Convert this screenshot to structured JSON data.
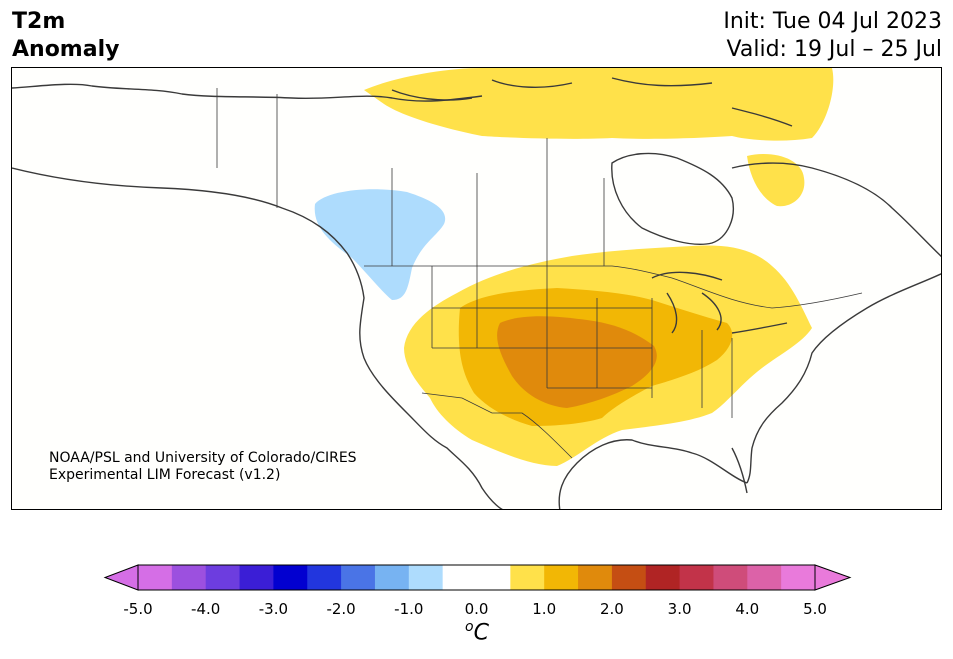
{
  "title": {
    "variable_line1": "T2m",
    "variable_line2": "Anomaly",
    "init": "Init: Tue 04 Jul 2023",
    "valid": "Valid: 19 Jul – 25 Jul"
  },
  "credit": {
    "line1": "NOAA/PSL and University of Colorado/CIRES",
    "line2": "Experimental LIM Forecast (v1.2)"
  },
  "colorbar": {
    "unit_base": "C",
    "unit_sup": "o",
    "tick_labels": [
      "-5.0",
      "-4.0",
      "-3.0",
      "-2.0",
      "-1.0",
      "0.0",
      "1.0",
      "2.0",
      "3.0",
      "4.0",
      "5.0"
    ],
    "under_color": "#d56ee6",
    "over_color": "#e97adb",
    "bins": [
      "#d56ee6",
      "#9c50df",
      "#6d3ddf",
      "#3b1ed6",
      "#0200d0",
      "#2236de",
      "#4a74e6",
      "#77b3f2",
      "#aedcfd",
      "#ffffff",
      "#ffffff",
      "#ffe14a",
      "#f2b705",
      "#e08a0c",
      "#c54e13",
      "#b02424",
      "#c23349",
      "#cf4c7a",
      "#dc62a8",
      "#e97adb"
    ]
  },
  "map": {
    "region": "North America",
    "anomaly_regions": [
      {
        "name": "Canadian Arctic warm anomaly",
        "level": "+0.5 to +1.0 °C",
        "color": "#ffe14a"
      },
      {
        "name": "Western Canada cool anomaly",
        "level": "-0.5 to -1.0 °C",
        "color": "#aedcfd"
      },
      {
        "name": "Central US warm anomaly",
        "level": "+0.5 to +1.0 °C",
        "color": "#ffe14a"
      },
      {
        "name": "Central US warm anomaly core",
        "level": "+1.0 to +1.5 °C",
        "color": "#f2b705"
      },
      {
        "name": "Southern Plains warm anomaly max",
        "level": "+1.5 to +2.0 °C",
        "color": "#e08a0c"
      }
    ]
  }
}
